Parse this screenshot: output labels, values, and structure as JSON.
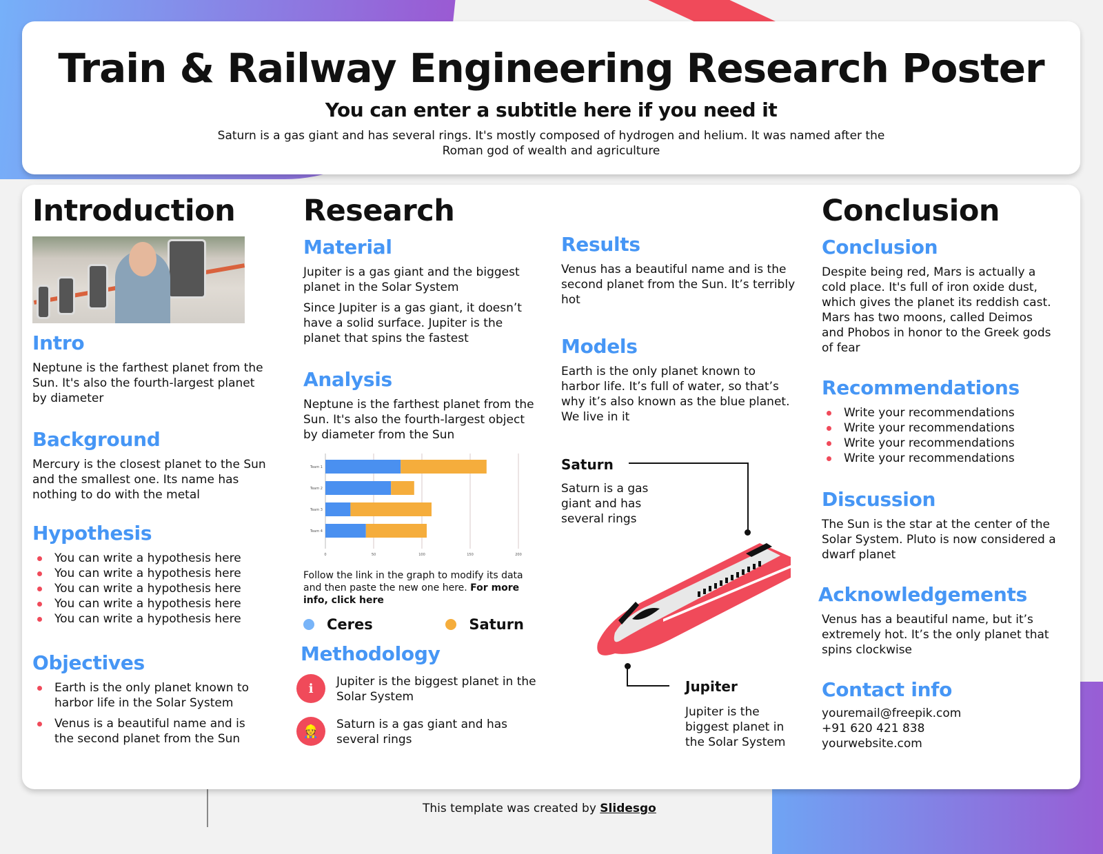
{
  "header": {
    "title": "Train & Railway Engineering Research Poster",
    "subtitle": "You can enter a subtitle here if you need it",
    "description": "Saturn is a gas giant and has several rings. It's mostly composed of hydrogen and helium. It was named after the Roman god of wealth and agriculture"
  },
  "introduction": {
    "heading": "Introduction",
    "intro": {
      "title": "Intro",
      "text": "Neptune is the farthest planet from the Sun. It's also the fourth-largest planet by diameter"
    },
    "background": {
      "title": "Background",
      "text": "Mercury is the closest planet to the Sun and the smallest one. Its name has nothing to do with the metal"
    },
    "hypothesis": {
      "title": "Hypothesis",
      "items": [
        "You can write a hypothesis here",
        "You can write a hypothesis here",
        "You can write a hypothesis here",
        "You can write a hypothesis here",
        "You can write a hypothesis here"
      ]
    },
    "objectives": {
      "title": "Objectives",
      "items": [
        "Earth is the only planet known to harbor life in the Solar System",
        "Venus is a beautiful name and is the second planet from the Sun"
      ]
    }
  },
  "research": {
    "heading": "Research",
    "material": {
      "title": "Material",
      "text1": "Jupiter is a gas giant and the biggest planet in the Solar System",
      "text2": "Since Jupiter is a gas giant, it doesn’t have a solid surface. Jupiter is the planet that spins the fastest"
    },
    "analysis": {
      "title": "Analysis",
      "text": "Neptune is the farthest planet from the Sun. It's also the fourth-largest object by diameter from the Sun"
    },
    "chart_note": "Follow the link in the graph to modify its data and then paste the new one here.",
    "chart_note_link": "For more info, click here",
    "legend": [
      {
        "label": "Ceres",
        "color": "#78b4f8"
      },
      {
        "label": "Saturn",
        "color": "#f5ad3c"
      }
    ],
    "methodology": {
      "title": "Methodology",
      "items": [
        {
          "icon": "info-icon",
          "text": "Jupiter is the biggest planet in the Solar System"
        },
        {
          "icon": "worker-icon",
          "text": "Saturn is a gas giant and has several rings"
        }
      ]
    },
    "results": {
      "title": "Results",
      "text": "Venus has a beautiful name and is the second planet from the Sun. It’s terribly hot"
    },
    "models": {
      "title": "Models",
      "text": "Earth is the only planet known to harbor life. It’s full of water, so that’s why it’s also known as the blue planet. We live in it"
    },
    "callouts": {
      "saturn": {
        "title": "Saturn",
        "text": "Saturn is a gas giant and has several rings"
      },
      "jupiter": {
        "title": "Jupiter",
        "text": "Jupiter is the biggest planet in the Solar System"
      }
    }
  },
  "conclusion": {
    "heading": "Conclusion",
    "conclusion": {
      "title": "Conclusion",
      "text": "Despite being red, Mars is actually a cold place. It's full of iron oxide dust, which gives the planet its reddish cast. Mars has two moons, called Deimos and Phobos in honor to the Greek gods of fear"
    },
    "recommendations": {
      "title": "Recommendations",
      "items": [
        "Write your recommendations",
        "Write your recommendations",
        "Write your recommendations",
        "Write your recommendations"
      ]
    },
    "discussion": {
      "title": "Discussion",
      "text": "The Sun is the star at the center of the Solar System. Pluto is now considered a dwarf planet"
    },
    "acknowledgements": {
      "title": "Acknowledgements",
      "text": "Venus has a beautiful name, but it’s extremely hot. It’s the only planet that spins clockwise"
    },
    "contact": {
      "title": "Contact info",
      "email": "youremail@freepik.com",
      "phone": "+91  620 421 838",
      "website": "yourwebsite.com"
    }
  },
  "footer": {
    "text": "This template was created by ",
    "brand": "Slidesgo"
  },
  "colors": {
    "accent": "#4696f5",
    "bullet": "#f04a5a",
    "series1": "#4a90f0",
    "series2": "#f5ad3c"
  },
  "chart_data": {
    "type": "bar",
    "orientation": "horizontal",
    "stacked": true,
    "categories": [
      "Team 1",
      "Team 2",
      "Team 3",
      "Team 4"
    ],
    "series": [
      {
        "name": "Ceres",
        "values": [
          78,
          68,
          26,
          42
        ]
      },
      {
        "name": "Saturn",
        "values": [
          89,
          24,
          84,
          63
        ]
      }
    ],
    "xlim": [
      0,
      200
    ],
    "xticks": [
      0,
      50,
      100,
      150,
      200
    ],
    "grid": true,
    "title": "",
    "xlabel": "",
    "ylabel": ""
  }
}
